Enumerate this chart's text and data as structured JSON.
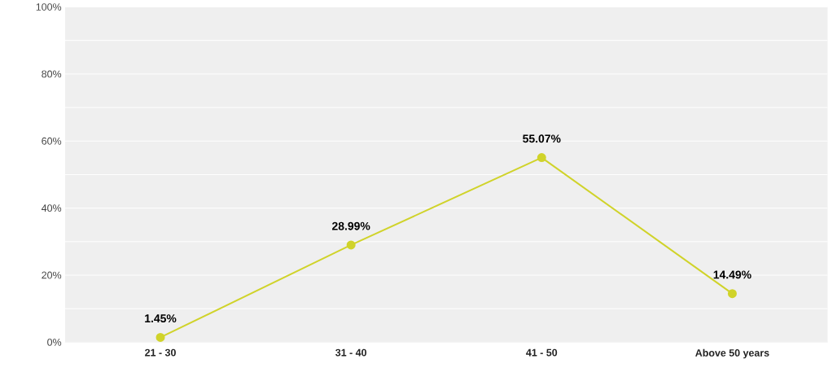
{
  "chart_data": {
    "type": "line",
    "categories": [
      "21 - 30",
      "31 - 40",
      "41 - 50",
      "Above 50 years"
    ],
    "series": [
      {
        "color": "#d0d32a",
        "values": [
          1.45,
          28.99,
          55.07,
          14.49
        ],
        "value_labels": [
          "1.45%",
          "28.99%",
          "55.07%",
          "14.49%"
        ]
      }
    ],
    "ylim": [
      0,
      100
    ],
    "yticks": [
      {
        "value": 0,
        "label": "0%"
      },
      {
        "value": 10,
        "label": null
      },
      {
        "value": 20,
        "label": "20%"
      },
      {
        "value": 30,
        "label": null
      },
      {
        "value": 40,
        "label": "40%"
      },
      {
        "value": 50,
        "label": null
      },
      {
        "value": 60,
        "label": "60%"
      },
      {
        "value": 70,
        "label": null
      },
      {
        "value": 80,
        "label": "80%"
      },
      {
        "value": 90,
        "label": null
      },
      {
        "value": 100,
        "label": "100%"
      }
    ],
    "grid": "y",
    "marker": "circle",
    "line_style": "solid"
  }
}
